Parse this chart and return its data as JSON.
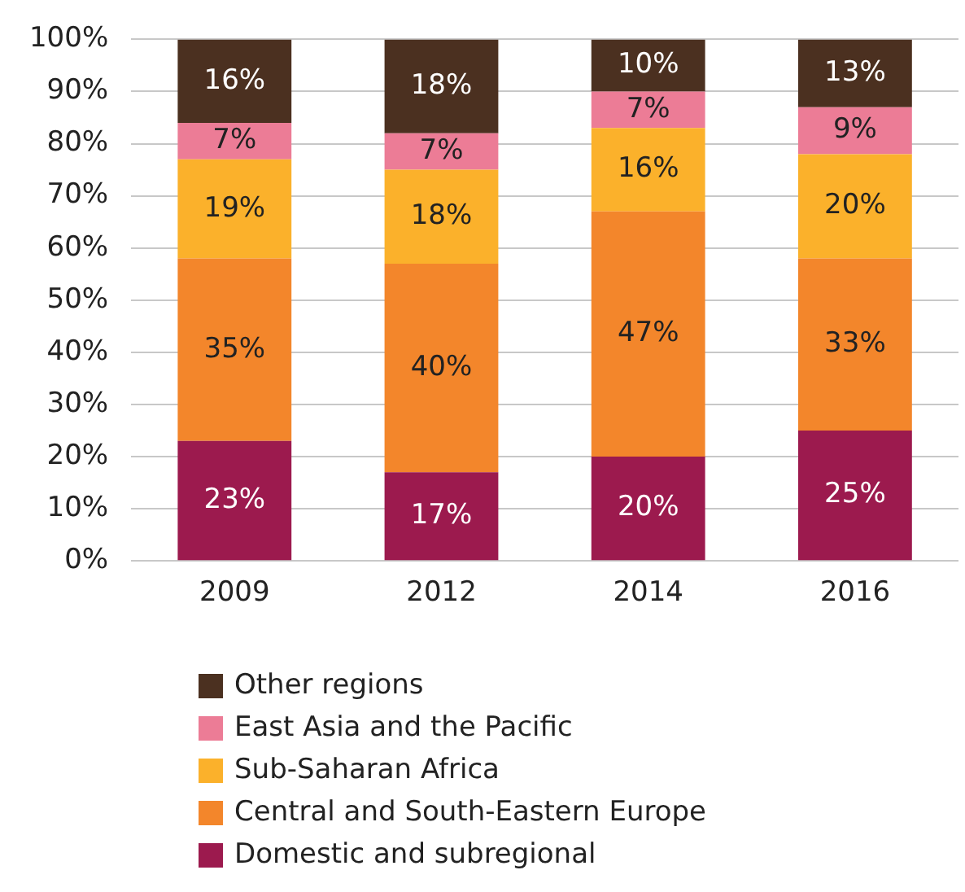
{
  "chart_data": {
    "type": "bar",
    "stacked": true,
    "categories": [
      "2009",
      "2012",
      "2014",
      "2016"
    ],
    "series": [
      {
        "name": "Domestic and subregional",
        "color": "#9c1a4e",
        "values": [
          23,
          17,
          20,
          25
        ],
        "value_labels": [
          "23%",
          "17%",
          "20%",
          "25%"
        ]
      },
      {
        "name": "Central and South-Eastern Europe",
        "color": "#f3862b",
        "values": [
          35,
          40,
          47,
          33
        ],
        "value_labels": [
          "35%",
          "40%",
          "47%",
          "33%"
        ]
      },
      {
        "name": "Sub-Saharan Africa",
        "color": "#fbb12b",
        "values": [
          19,
          18,
          16,
          20
        ],
        "value_labels": [
          "19%",
          "18%",
          "16%",
          "20%"
        ]
      },
      {
        "name": "East Asia and the Pacific",
        "color": "#ec7c96",
        "values": [
          7,
          7,
          7,
          9
        ],
        "value_labels": [
          "7%",
          "7%",
          "7%",
          "9%"
        ]
      },
      {
        "name": "Other regions",
        "color": "#4b3020",
        "values": [
          16,
          18,
          10,
          13
        ],
        "value_labels": [
          "16%",
          "18%",
          "10%",
          "13%"
        ]
      }
    ],
    "ylim": [
      0,
      100
    ],
    "yticks": [
      {
        "value": 0,
        "label": "0%"
      },
      {
        "value": 10,
        "label": "10%"
      },
      {
        "value": 20,
        "label": "20%"
      },
      {
        "value": 30,
        "label": "30%"
      },
      {
        "value": 40,
        "label": "40%"
      },
      {
        "value": 50,
        "label": "50%"
      },
      {
        "value": 60,
        "label": "60%"
      },
      {
        "value": 70,
        "label": "70%"
      },
      {
        "value": 80,
        "label": "80%"
      },
      {
        "value": 90,
        "label": "90%"
      },
      {
        "value": 100,
        "label": "100%"
      }
    ],
    "grid": "y",
    "legend": "bottom"
  }
}
